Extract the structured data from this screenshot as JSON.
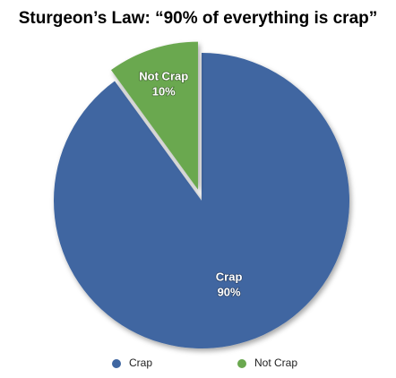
{
  "chart_data": {
    "type": "pie",
    "title": "Sturgeon’s Law: “90% of everything is crap”",
    "categories": [
      "Crap",
      "Not Crap"
    ],
    "values": [
      90,
      10
    ],
    "value_labels": [
      "90%",
      "10%"
    ],
    "colors": [
      "#3f66a1",
      "#6aa84f"
    ],
    "explode": [
      false,
      true
    ],
    "legend": "bottom"
  }
}
